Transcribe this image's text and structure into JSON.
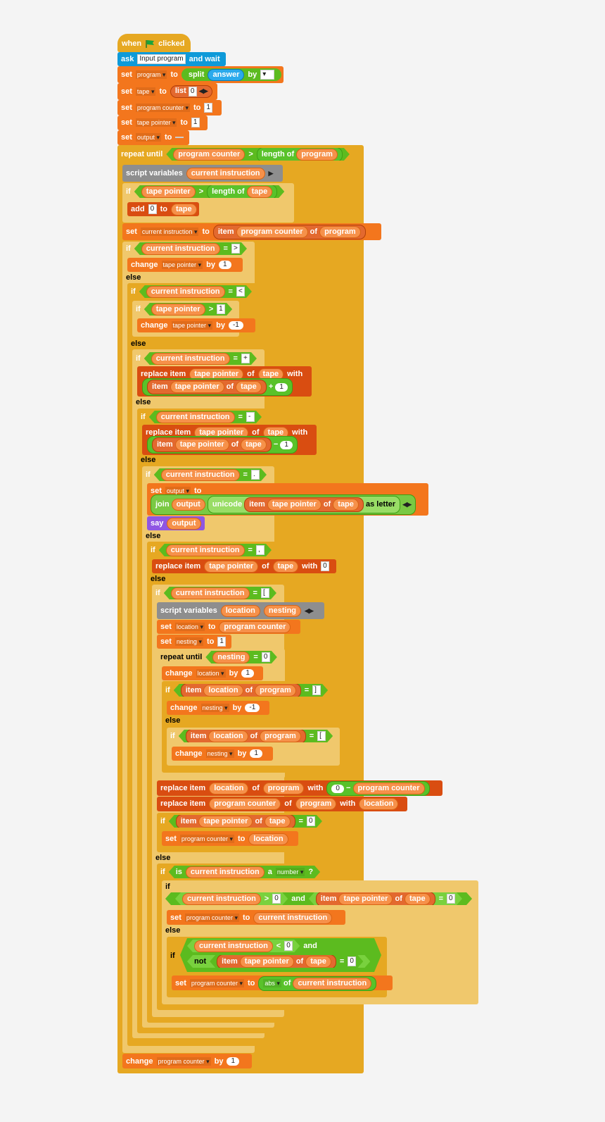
{
  "hat": {
    "when": "when",
    "clicked": "clicked",
    "flag_icon": "green-flag-icon",
    "flag_color": "#1aa33c"
  },
  "ask": {
    "ask": "ask",
    "prompt": "Input program",
    "and_wait": "and wait"
  },
  "s1": {
    "set": "set",
    "var": "program",
    "to": "to",
    "split": "split",
    "answer": "answer",
    "by": "by"
  },
  "s2": {
    "set": "set",
    "var": "tape",
    "to": "to",
    "list": "list",
    "item0": "0"
  },
  "s3": {
    "set": "set",
    "var": "program counter",
    "to": "to",
    "value": "1"
  },
  "s4": {
    "set": "set",
    "var": "tape pointer",
    "to": "to",
    "value": "1"
  },
  "s5": {
    "set": "set",
    "var": "output",
    "to": "to",
    "value": ""
  },
  "rep": {
    "label": "repeat until",
    "a": "program counter",
    "gt": ">",
    "length_of": "length of",
    "b": "program"
  },
  "sv1": {
    "label": "script variables",
    "a": "current instruction"
  },
  "if1": {
    "if": "if",
    "a": "tape pointer",
    "gt": ">",
    "length_of": "length of",
    "b": "tape"
  },
  "add1": {
    "add": "add",
    "value": "0",
    "to": "to",
    "list": "tape"
  },
  "set6": {
    "set": "set",
    "var": "current instruction",
    "to": "to",
    "item": "item",
    "a": "program counter",
    "of": "of",
    "b": "program"
  },
  "if2": {
    "if": "if",
    "a": "current instruction",
    "eq": "=",
    "ch": ">"
  },
  "ch1": {
    "change": "change",
    "var": "tape pointer",
    "by": "by",
    "value": "1"
  },
  "else1": "else",
  "if3": {
    "if": "if",
    "a": "current instruction",
    "eq": "=",
    "ch": "<"
  },
  "if4": {
    "if": "if",
    "a": "tape pointer",
    "gt": ">",
    "value": "1"
  },
  "ch2": {
    "change": "change",
    "var": "tape pointer",
    "by": "by",
    "value": "-1"
  },
  "else2": "else",
  "if5": {
    "if": "if",
    "a": "current instruction",
    "eq": "=",
    "ch": "+"
  },
  "rp1": {
    "label": "replace item",
    "a": "tape pointer",
    "of": "of",
    "b": "tape",
    "with": "with",
    "item": "item",
    "c": "tape pointer",
    "of2": "of",
    "d": "tape",
    "op": "+",
    "n": "1"
  },
  "else3": "else",
  "if6": {
    "if": "if",
    "a": "current instruction",
    "eq": "=",
    "ch": "-"
  },
  "rp2": {
    "label": "replace item",
    "a": "tape pointer",
    "of": "of",
    "b": "tape",
    "with": "with",
    "item": "item",
    "c": "tape pointer",
    "of2": "of",
    "d": "tape",
    "op": "−",
    "n": "1"
  },
  "else4": "else",
  "if7": {
    "if": "if",
    "a": "current instruction",
    "eq": "=",
    "ch": "."
  },
  "set7": {
    "set": "set",
    "var": "output",
    "to": "to",
    "join": "join",
    "a": "output",
    "unicode": "unicode",
    "item": "item",
    "b": "tape pointer",
    "of": "of",
    "c": "tape",
    "as_letter": "as letter"
  },
  "say": {
    "say": "say",
    "a": "output"
  },
  "else5": "else",
  "if8": {
    "if": "if",
    "a": "current instruction",
    "eq": "=",
    "ch": ","
  },
  "rp3": {
    "label": "replace item",
    "a": "tape pointer",
    "of": "of",
    "b": "tape",
    "with": "with",
    "value": "0"
  },
  "else6": "else",
  "if9": {
    "if": "if",
    "a": "current instruction",
    "eq": "=",
    "ch": "["
  },
  "sv2": {
    "label": "script variables",
    "a": "location",
    "b": "nesting"
  },
  "set8": {
    "set": "set",
    "var": "location",
    "to": "to",
    "a": "program counter"
  },
  "set9": {
    "set": "set",
    "var": "nesting",
    "to": "to",
    "value": "1"
  },
  "rep2": {
    "label": "repeat until",
    "a": "nesting",
    "eq": "=",
    "value": "0"
  },
  "ch3": {
    "change": "change",
    "var": "location",
    "by": "by",
    "value": "1"
  },
  "if10": {
    "if": "if",
    "item": "item",
    "a": "location",
    "of": "of",
    "b": "program",
    "eq": "=",
    "ch": "]"
  },
  "ch4": {
    "change": "change",
    "var": "nesting",
    "by": "by",
    "value": "-1"
  },
  "else7": "else",
  "if11": {
    "if": "if",
    "item": "item",
    "a": "location",
    "of": "of",
    "b": "program",
    "eq": "=",
    "ch": "["
  },
  "ch5": {
    "change": "change",
    "var": "nesting",
    "by": "by",
    "value": "1"
  },
  "rp4": {
    "label": "replace item",
    "a": "location",
    "of": "of",
    "b": "program",
    "with": "with",
    "n": "0",
    "op": "−",
    "c": "program counter"
  },
  "rp5": {
    "label": "replace item",
    "a": "program counter",
    "of": "of",
    "b": "program",
    "with": "with",
    "c": "location"
  },
  "if12": {
    "if": "if",
    "item": "item",
    "a": "tape pointer",
    "of": "of",
    "b": "tape",
    "eq": "=",
    "value": "0"
  },
  "set10": {
    "set": "set",
    "var": "program counter",
    "to": "to",
    "a": "location"
  },
  "else8": "else",
  "if13": {
    "if": "if",
    "is": "is",
    "a": "current instruction",
    "art": "a",
    "type": "number",
    "q": "?"
  },
  "if14": {
    "if": "if",
    "a": "current instruction",
    "gt": ">",
    "v1": "0",
    "and": "and",
    "item": "item",
    "b": "tape pointer",
    "of": "of",
    "c": "tape",
    "eq": "=",
    "v2": "0"
  },
  "set11": {
    "set": "set",
    "var": "program counter",
    "to": "to",
    "a": "current instruction"
  },
  "else9": "else",
  "if15": {
    "if": "if",
    "a": "current instruction",
    "lt": "<",
    "v1": "0",
    "and": "and",
    "not": "not",
    "item": "item",
    "b": "tape pointer",
    "of": "of",
    "c": "tape",
    "eq": "=",
    "v2": "0"
  },
  "set12": {
    "set": "set",
    "var": "program counter",
    "to": "to",
    "fn": "abs",
    "of": "of",
    "a": "current instruction"
  },
  "ch6": {
    "change": "change",
    "var": "program counter",
    "by": "by",
    "value": "1"
  }
}
